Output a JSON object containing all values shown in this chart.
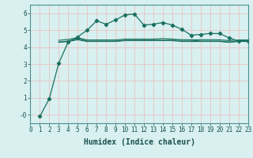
{
  "background_color": "#d8f0f0",
  "plot_bg_color": "#d8f0f0",
  "grid_color": "#e8c8c8",
  "line_color": "#1a7060",
  "xlabel": "Humidex (Indice chaleur)",
  "xlim": [
    0,
    23
  ],
  "ylim": [
    -0.5,
    6.5
  ],
  "yticks": [
    0,
    1,
    2,
    3,
    4,
    5,
    6
  ],
  "ytick_labels": [
    "-0",
    "1",
    "2",
    "3",
    "4",
    "5",
    "6"
  ],
  "xticks": [
    0,
    1,
    2,
    3,
    4,
    5,
    6,
    7,
    8,
    9,
    10,
    11,
    12,
    13,
    14,
    15,
    16,
    17,
    18,
    19,
    20,
    21,
    22,
    23
  ],
  "series": [
    [
      null,
      -0.1,
      0.95,
      3.05,
      4.3,
      4.6,
      5.0,
      5.55,
      5.35,
      5.6,
      5.9,
      5.95,
      5.3,
      5.35,
      5.45,
      5.3,
      5.05,
      4.7,
      4.75,
      4.8,
      4.8,
      4.55,
      4.35,
      4.35
    ],
    [
      null,
      null,
      null,
      4.3,
      4.35,
      4.5,
      4.35,
      4.35,
      4.35,
      4.35,
      4.4,
      4.4,
      4.4,
      4.4,
      4.4,
      4.4,
      4.4,
      4.4,
      4.35,
      4.35,
      4.35,
      4.3,
      4.35,
      4.4
    ],
    [
      null,
      null,
      null,
      4.4,
      4.45,
      4.55,
      4.42,
      4.42,
      4.42,
      4.42,
      4.47,
      4.47,
      4.47,
      4.47,
      4.5,
      4.47,
      4.43,
      4.43,
      4.43,
      4.43,
      4.43,
      4.38,
      4.42,
      4.42
    ],
    [
      null,
      null,
      null,
      4.28,
      4.33,
      4.43,
      4.33,
      4.33,
      4.33,
      4.33,
      4.38,
      4.38,
      4.38,
      4.38,
      4.38,
      4.38,
      4.33,
      4.33,
      4.33,
      4.33,
      4.33,
      4.28,
      4.33,
      4.33
    ]
  ],
  "xlabel_fontsize": 7,
  "tick_fontsize": 5.5
}
